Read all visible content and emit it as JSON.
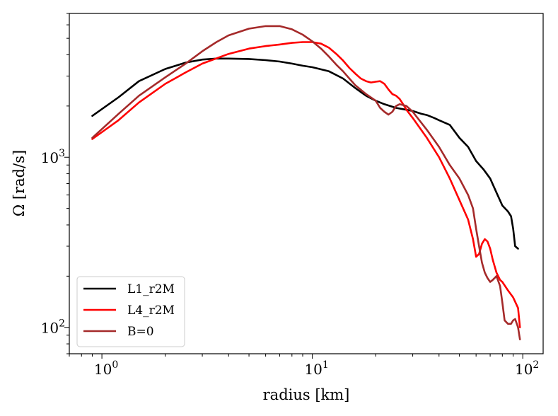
{
  "chart_data": {
    "type": "line",
    "xscale": "log",
    "yscale": "log",
    "xlabel": "radius [km]",
    "ylabel": "Ω [rad/s]",
    "xlim": [
      0.7,
      125
    ],
    "ylim": [
      70,
      7000
    ],
    "x_ticks": [
      {
        "value": 1,
        "base": "10",
        "exp": "0"
      },
      {
        "value": 10,
        "base": "10",
        "exp": "1"
      },
      {
        "value": 100,
        "base": "10",
        "exp": "2"
      }
    ],
    "y_ticks": [
      {
        "value": 100,
        "base": "10",
        "exp": "2"
      },
      {
        "value": 1000,
        "base": "10",
        "exp": "3"
      }
    ],
    "legend_position": "lower-left",
    "series": [
      {
        "name": "L1_r2M",
        "color": "#000000",
        "x": [
          0.9,
          1.2,
          1.5,
          2.0,
          2.5,
          3.0,
          3.5,
          4.0,
          5.0,
          6.0,
          7.0,
          8.0,
          9.0,
          10.0,
          12.0,
          14.0,
          16.0,
          18.0,
          20.0,
          22.0,
          25.0,
          28.0,
          30.0,
          33.0,
          35.0,
          38.0,
          40.0,
          45.0,
          50.0,
          55.0,
          60.0,
          65.0,
          70.0,
          75.0,
          80.0,
          85.0,
          88.0,
          90.0,
          92.0,
          95.0
        ],
        "y": [
          1750,
          2250,
          2800,
          3300,
          3600,
          3750,
          3800,
          3800,
          3780,
          3720,
          3650,
          3550,
          3450,
          3380,
          3200,
          2900,
          2550,
          2300,
          2150,
          2050,
          1950,
          1900,
          1870,
          1800,
          1770,
          1700,
          1650,
          1550,
          1300,
          1150,
          950,
          850,
          750,
          620,
          520,
          480,
          450,
          380,
          300,
          290
        ]
      },
      {
        "name": "L4_r2M",
        "color": "#ff0000",
        "x": [
          0.9,
          1.2,
          1.5,
          2.0,
          2.5,
          3.0,
          4.0,
          5.0,
          6.0,
          7.0,
          8.0,
          9.0,
          10.0,
          11.0,
          12.0,
          13.0,
          14.0,
          15.0,
          16.0,
          17.0,
          18.0,
          19.0,
          20.0,
          21.0,
          22.0,
          23.0,
          24.0,
          25.0,
          26.0,
          27.0,
          28.0,
          30.0,
          35.0,
          40.0,
          45.0,
          50.0,
          55.0,
          58.0,
          60.0,
          62.0,
          64.0,
          66.0,
          68.0,
          70.0,
          72.0,
          75.0,
          78.0,
          80.0,
          85.0,
          90.0,
          95.0,
          97.0
        ],
        "y": [
          1280,
          1650,
          2100,
          2700,
          3150,
          3550,
          4050,
          4350,
          4500,
          4600,
          4700,
          4750,
          4750,
          4650,
          4400,
          4050,
          3700,
          3350,
          3100,
          2900,
          2800,
          2750,
          2780,
          2800,
          2700,
          2500,
          2350,
          2300,
          2200,
          2050,
          1900,
          1700,
          1300,
          1000,
          750,
          560,
          430,
          330,
          260,
          270,
          310,
          330,
          320,
          290,
          250,
          210,
          190,
          185,
          165,
          150,
          130,
          100
        ]
      },
      {
        "name": "B=0",
        "color": "#a52a2a",
        "x": [
          0.9,
          1.2,
          1.5,
          2.0,
          2.5,
          3.0,
          3.5,
          4.0,
          5.0,
          6.0,
          7.0,
          8.0,
          9.0,
          10.0,
          11.0,
          12.0,
          13.0,
          14.0,
          15.0,
          16.0,
          18.0,
          20.0,
          21.0,
          22.0,
          23.0,
          24.0,
          25.0,
          26.0,
          28.0,
          30.0,
          35.0,
          40.0,
          45.0,
          50.0,
          55.0,
          58.0,
          60.0,
          62.0,
          64.0,
          66.0,
          68.0,
          70.0,
          72.0,
          75.0,
          78.0,
          80.0,
          82.0,
          85.0,
          88.0,
          90.0,
          92.0,
          95.0,
          97.0
        ],
        "y": [
          1300,
          1800,
          2300,
          2950,
          3550,
          4200,
          4750,
          5200,
          5700,
          5900,
          5900,
          5650,
          5250,
          4800,
          4350,
          3900,
          3500,
          3200,
          2900,
          2650,
          2350,
          2150,
          1950,
          1850,
          1780,
          1850,
          2000,
          2050,
          2000,
          1850,
          1450,
          1150,
          900,
          750,
          600,
          500,
          380,
          300,
          240,
          210,
          195,
          185,
          190,
          200,
          175,
          140,
          110,
          105,
          105,
          110,
          112,
          100,
          85
        ]
      }
    ]
  }
}
